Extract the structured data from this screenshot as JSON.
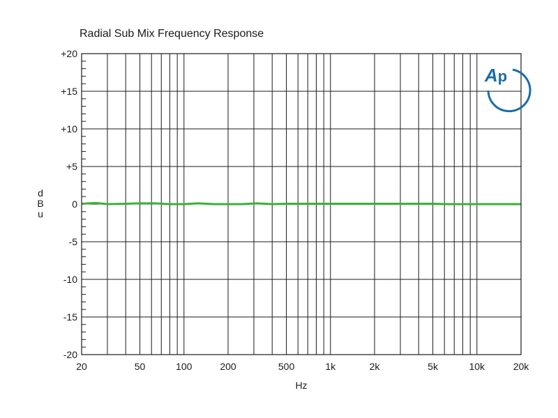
{
  "chart_data": {
    "type": "line",
    "title": "Radial Sub Mix Frequency Response",
    "xlabel": "Hz",
    "ylabel": "dBu",
    "x_scale": "log",
    "xlim": [
      20,
      20000
    ],
    "ylim": [
      -20,
      20
    ],
    "grid": true,
    "x_ticks": [
      {
        "value": 20,
        "label": "20"
      },
      {
        "value": 50,
        "label": "50"
      },
      {
        "value": 100,
        "label": "100"
      },
      {
        "value": 200,
        "label": "200"
      },
      {
        "value": 500,
        "label": "500"
      },
      {
        "value": 1000,
        "label": "1k"
      },
      {
        "value": 2000,
        "label": "2k"
      },
      {
        "value": 5000,
        "label": "5k"
      },
      {
        "value": 10000,
        "label": "10k"
      },
      {
        "value": 20000,
        "label": "20k"
      }
    ],
    "y_ticks": [
      {
        "value": 20,
        "label": "+20"
      },
      {
        "value": 15,
        "label": "+15"
      },
      {
        "value": 10,
        "label": "+10"
      },
      {
        "value": 5,
        "label": "+5"
      },
      {
        "value": 0,
        "label": "0"
      },
      {
        "value": -5,
        "label": "-5"
      },
      {
        "value": -10,
        "label": "-10"
      },
      {
        "value": -15,
        "label": "-15"
      },
      {
        "value": -20,
        "label": "-20"
      }
    ],
    "series": [
      {
        "color": "#3cb035",
        "x": [
          20,
          25,
          30,
          40,
          50,
          63,
          80,
          100,
          125,
          160,
          200,
          250,
          315,
          400,
          500,
          630,
          800,
          1000,
          1250,
          1600,
          2000,
          2500,
          3150,
          4000,
          5000,
          6300,
          8000,
          10000,
          12500,
          16000,
          20000
        ],
        "y": [
          0.05,
          0.15,
          0.0,
          0.05,
          0.1,
          0.1,
          0.0,
          0.0,
          0.1,
          0.0,
          0.0,
          0.0,
          0.1,
          0.0,
          0.05,
          0.05,
          0.05,
          0.05,
          0.05,
          0.05,
          0.05,
          0.05,
          0.05,
          0.05,
          0.05,
          0.0,
          0.0,
          0.0,
          0.0,
          0.0,
          0.0
        ]
      }
    ]
  },
  "logo": {
    "text": "AP",
    "color": "#1a6ca8"
  }
}
